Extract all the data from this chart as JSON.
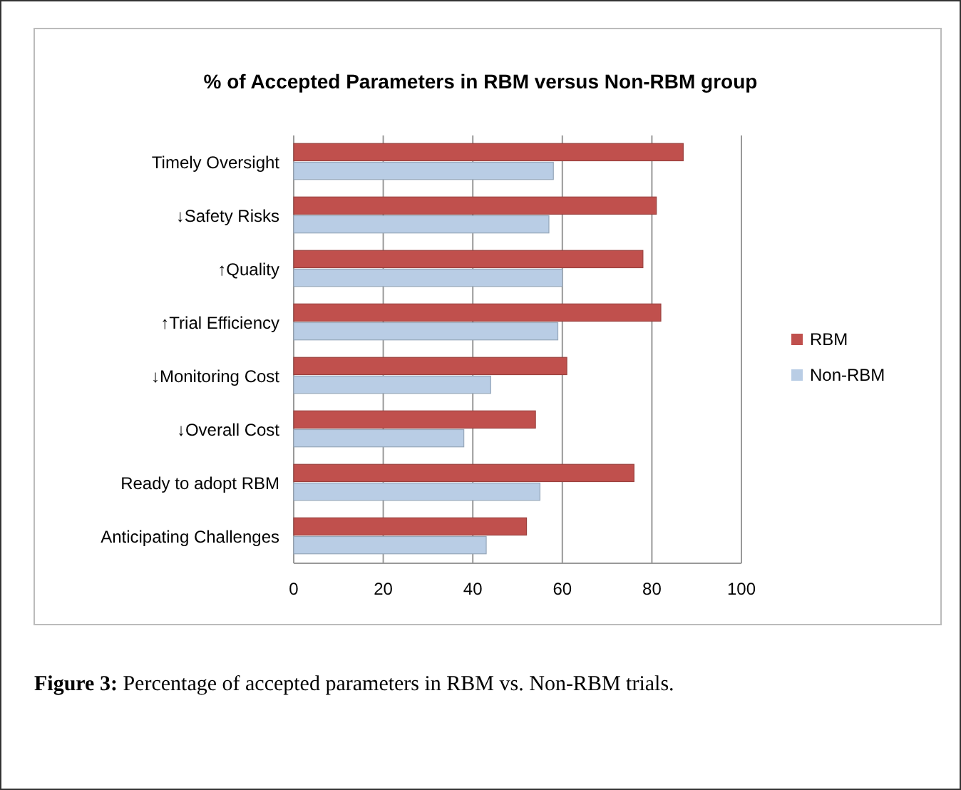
{
  "chart_data": {
    "type": "bar",
    "orientation": "horizontal",
    "title": "% of Accepted Parameters in RBM versus Non-RBM group",
    "categories": [
      "Timely Oversight",
      "↓Safety Risks",
      "↑Quality",
      "↑Trial Efficiency",
      "↓Monitoring Cost",
      "↓Overall Cost",
      "Ready to adopt RBM",
      "Anticipating Challenges"
    ],
    "series": [
      {
        "name": "RBM",
        "color": "#c0504d",
        "values": [
          87,
          81,
          78,
          82,
          61,
          54,
          76,
          52
        ]
      },
      {
        "name": "Non-RBM",
        "color": "#b9cde5",
        "values": [
          58,
          57,
          60,
          59,
          44,
          38,
          55,
          43
        ]
      }
    ],
    "xlim": [
      0,
      100
    ],
    "xticks": [
      0,
      20,
      40,
      60,
      80,
      100
    ],
    "grid": "x",
    "legend": "right",
    "annotations": [
      "Figure 3: Percentage of accepted parameters in RBM vs. Non-RBM trials."
    ]
  }
}
